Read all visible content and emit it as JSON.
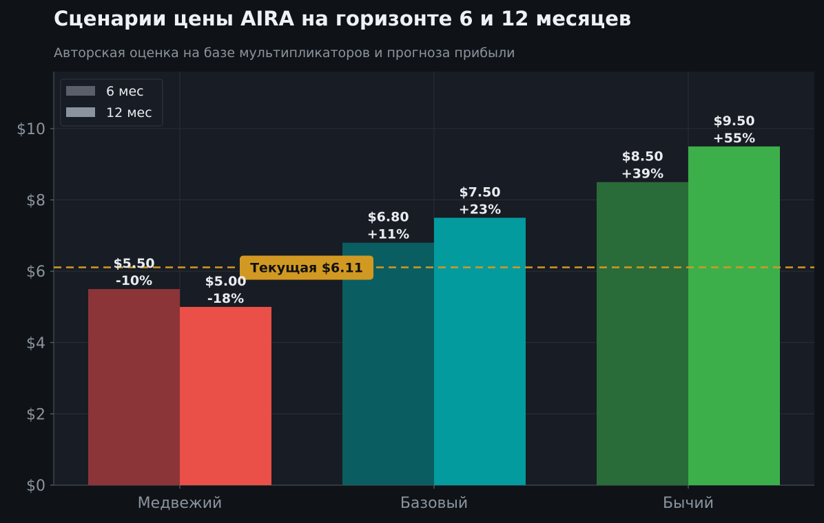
{
  "title": "Сценарии цены AIRA на горизонте 6 и 12 месяцев",
  "subtitle": "Авторская оценка на базе мультипликаторов и прогноза прибыли",
  "colors": {
    "background": "#0f1317",
    "plot_bg": "#181c24",
    "grid": "#2a2f37",
    "reference_line": "#d29922"
  },
  "chart_data": {
    "type": "bar",
    "categories": [
      "Медвежий",
      "Базовый",
      "Бычий"
    ],
    "series": [
      {
        "name": "6 мес",
        "values": [
          5.5,
          6.8,
          8.5
        ],
        "labels": [
          "$5.50",
          "$6.80",
          "$8.50"
        ],
        "changes": [
          "-10%",
          "+11%",
          "+39%"
        ],
        "colors": [
          "#8b3539",
          "#0a5e62",
          "#2a6b3a"
        ]
      },
      {
        "name": "12 мес",
        "values": [
          5.0,
          7.5,
          9.5
        ],
        "labels": [
          "$5.00",
          "$7.50",
          "$9.50"
        ],
        "changes": [
          "-18%",
          "+23%",
          "+55%"
        ],
        "colors": [
          "#ea4f48",
          "#039b9e",
          "#3caf4a"
        ]
      }
    ],
    "legend_colors": [
      "#5a5f69",
      "#8b949e"
    ],
    "legend_position": "top-left",
    "yticks": [
      0,
      2,
      4,
      6,
      8,
      10
    ],
    "ytick_labels": [
      "$0",
      "$2",
      "$4",
      "$6",
      "$8",
      "$10"
    ],
    "ylim": [
      0,
      11.6
    ],
    "grid": true,
    "reference_line": {
      "value": 6.11,
      "label": "Текущая $6.11"
    }
  }
}
